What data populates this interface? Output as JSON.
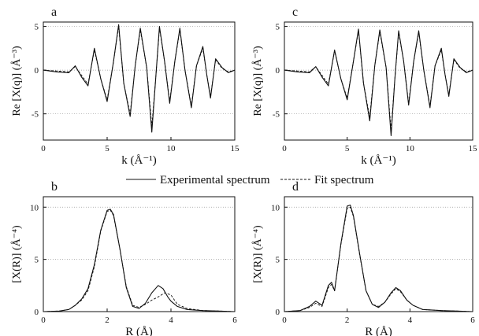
{
  "legend": {
    "experimental_label": "Experimental spectrum",
    "fit_label": "Fit spectrum"
  },
  "chart_data": [
    {
      "type": "line",
      "panel_label": "a",
      "xlabel": "k (Å⁻¹)",
      "ylabel": "Re [X(q)] (Å⁻³)",
      "xlim": [
        0,
        15
      ],
      "ylim": [
        -8,
        5.5
      ],
      "xticks": [
        0,
        5,
        10,
        15
      ],
      "yticks": [
        -5,
        0,
        5
      ],
      "grid": "dotted",
      "series": [
        {
          "name": "Experimental spectrum",
          "style": "solid",
          "x": [
            0,
            1,
            2,
            2.5,
            3,
            3.5,
            4,
            4.5,
            5,
            5.5,
            5.9,
            6.3,
            6.8,
            7.2,
            7.6,
            8.1,
            8.5,
            8.8,
            9.1,
            9.5,
            9.9,
            10.3,
            10.7,
            11.1,
            11.6,
            12.0,
            12.5,
            12.8,
            13.1,
            13.5,
            14,
            14.5,
            15
          ],
          "y": [
            0,
            -0.2,
            -0.3,
            0.5,
            -0.8,
            -1.8,
            2.5,
            -1.0,
            -3.6,
            1.0,
            5.2,
            -1.5,
            -5.3,
            0.5,
            4.8,
            0.3,
            -7.1,
            -1.0,
            5.0,
            1.0,
            -3.8,
            1.0,
            4.8,
            0.0,
            -4.3,
            0.5,
            2.7,
            -0.5,
            -3.2,
            1.3,
            0.3,
            -0.3,
            0
          ]
        },
        {
          "name": "Fit spectrum",
          "style": "dashed",
          "x": [
            0,
            1,
            2,
            2.5,
            3,
            3.5,
            4,
            4.5,
            5,
            5.5,
            5.9,
            6.3,
            6.8,
            7.2,
            7.6,
            8.1,
            8.5,
            8.8,
            9.1,
            9.5,
            9.9,
            10.3,
            10.7,
            11.1,
            11.6,
            12.0,
            12.5,
            12.8,
            13.1,
            13.5,
            14,
            14.5,
            15
          ],
          "y": [
            0,
            -0.1,
            -0.2,
            0.4,
            -0.6,
            -1.6,
            2.3,
            -1.0,
            -3.4,
            1.0,
            5.0,
            -1.5,
            -5.0,
            0.5,
            4.6,
            0.3,
            -6.4,
            -1.0,
            4.8,
            1.0,
            -3.6,
            1.0,
            4.6,
            0.0,
            -4.1,
            0.5,
            2.5,
            -0.5,
            -3.0,
            1.2,
            0.2,
            -0.2,
            0
          ]
        }
      ]
    },
    {
      "type": "line",
      "panel_label": "c",
      "xlabel": "k (Å⁻¹)",
      "ylabel": "Re [X(q)] (Å⁻³)",
      "xlim": [
        0,
        15
      ],
      "ylim": [
        -8,
        5.5
      ],
      "xticks": [
        0,
        5,
        10,
        15
      ],
      "yticks": [
        -5,
        0,
        5
      ],
      "grid": "dotted",
      "series": [
        {
          "name": "Experimental spectrum",
          "style": "solid",
          "x": [
            0,
            1,
            2,
            2.5,
            3,
            3.5,
            4,
            4.5,
            5,
            5.5,
            5.9,
            6.3,
            6.8,
            7.2,
            7.6,
            8.1,
            8.5,
            8.8,
            9.1,
            9.5,
            9.9,
            10.3,
            10.7,
            11.1,
            11.6,
            12.0,
            12.5,
            12.8,
            13.1,
            13.5,
            14,
            14.5,
            15
          ],
          "y": [
            0,
            -0.2,
            -0.3,
            0.4,
            -0.8,
            -1.8,
            2.3,
            -1.0,
            -3.4,
            1.0,
            4.7,
            -1.5,
            -5.8,
            0.5,
            4.6,
            0.3,
            -7.5,
            -1.0,
            4.5,
            1.0,
            -4.0,
            1.0,
            4.5,
            0.0,
            -4.3,
            0.5,
            2.5,
            -0.5,
            -3.0,
            1.3,
            0.3,
            -0.3,
            0
          ]
        },
        {
          "name": "Fit spectrum",
          "style": "dashed",
          "x": [
            0,
            1,
            2,
            2.5,
            3,
            3.5,
            4,
            4.5,
            5,
            5.5,
            5.9,
            6.3,
            6.8,
            7.2,
            7.6,
            8.1,
            8.5,
            8.8,
            9.1,
            9.5,
            9.9,
            10.3,
            10.7,
            11.1,
            11.6,
            12.0,
            12.5,
            12.8,
            13.1,
            13.5,
            14,
            14.5,
            15
          ],
          "y": [
            0,
            -0.1,
            -0.2,
            0.4,
            -0.6,
            -1.6,
            2.2,
            -1.0,
            -3.2,
            1.0,
            4.5,
            -1.5,
            -5.4,
            0.5,
            4.4,
            0.3,
            -6.9,
            -1.0,
            4.3,
            1.0,
            -3.8,
            1.0,
            4.3,
            0.0,
            -4.1,
            0.5,
            2.3,
            -0.5,
            -2.8,
            1.2,
            0.2,
            -0.2,
            0
          ]
        }
      ]
    },
    {
      "type": "line",
      "panel_label": "b",
      "xlabel": "R (Å)",
      "ylabel": "[X(R)] (Å⁻⁴)",
      "xlim": [
        0,
        6
      ],
      "ylim": [
        0,
        11
      ],
      "xticks": [
        0,
        2,
        4,
        6
      ],
      "yticks": [
        0,
        5,
        10
      ],
      "grid": "dotted",
      "series": [
        {
          "name": "Experimental spectrum",
          "style": "solid",
          "x": [
            0,
            0.5,
            0.8,
            1.0,
            1.2,
            1.4,
            1.6,
            1.8,
            2.0,
            2.1,
            2.2,
            2.4,
            2.6,
            2.8,
            3.0,
            3.2,
            3.4,
            3.6,
            3.75,
            3.9,
            4.0,
            4.2,
            4.5,
            5.0,
            5.5,
            6.0
          ],
          "y": [
            0,
            0.05,
            0.2,
            0.6,
            1.2,
            2.2,
            4.5,
            7.8,
            9.7,
            9.8,
            9.3,
            6.0,
            2.3,
            0.5,
            0.3,
            0.8,
            1.8,
            2.5,
            2.2,
            1.4,
            1.0,
            0.5,
            0.2,
            0.1,
            0.05,
            0
          ]
        },
        {
          "name": "Fit spectrum",
          "style": "dashed",
          "x": [
            0,
            0.5,
            0.8,
            1.0,
            1.2,
            1.4,
            1.6,
            1.8,
            2.0,
            2.1,
            2.2,
            2.4,
            2.6,
            2.8,
            3.0,
            3.2,
            3.4,
            3.6,
            3.8,
            4.0,
            4.2,
            4.5,
            5.0,
            5.5,
            6.0
          ],
          "y": [
            0,
            0.05,
            0.2,
            0.6,
            1.1,
            2.0,
            4.3,
            7.7,
            9.6,
            9.7,
            9.2,
            6.0,
            2.4,
            0.6,
            0.4,
            0.7,
            1.1,
            1.4,
            1.8,
            1.6,
            0.7,
            0.3,
            0.1,
            0.05,
            0
          ]
        }
      ]
    },
    {
      "type": "line",
      "panel_label": "d",
      "xlabel": "R (Å)",
      "ylabel": "[X(R)] (Å⁻⁴)",
      "xlim": [
        0,
        6
      ],
      "ylim": [
        0,
        11
      ],
      "xticks": [
        0,
        2,
        4,
        6
      ],
      "yticks": [
        0,
        5,
        10
      ],
      "grid": "dotted",
      "series": [
        {
          "name": "Experimental spectrum",
          "style": "solid",
          "x": [
            0,
            0.5,
            0.8,
            1.0,
            1.2,
            1.4,
            1.5,
            1.6,
            1.8,
            2.0,
            2.1,
            2.2,
            2.4,
            2.6,
            2.8,
            3.0,
            3.2,
            3.4,
            3.55,
            3.7,
            3.9,
            4.1,
            4.4,
            5.0,
            5.5,
            6.0
          ],
          "y": [
            0,
            0.1,
            0.5,
            1.0,
            0.6,
            2.5,
            2.8,
            2.0,
            6.5,
            10.1,
            10.2,
            9.2,
            5.5,
            2.0,
            0.7,
            0.4,
            0.9,
            1.8,
            2.3,
            2.0,
            1.1,
            0.6,
            0.2,
            0.1,
            0.05,
            0
          ]
        },
        {
          "name": "Fit spectrum",
          "style": "dashed",
          "x": [
            0,
            0.5,
            0.8,
            1.0,
            1.2,
            1.4,
            1.5,
            1.6,
            1.8,
            2.0,
            2.1,
            2.2,
            2.4,
            2.6,
            2.8,
            3.0,
            3.2,
            3.4,
            3.55,
            3.7,
            3.9,
            4.1,
            4.4,
            5.0,
            5.5,
            6.0
          ],
          "y": [
            0,
            0.1,
            0.4,
            0.8,
            0.5,
            2.3,
            2.6,
            2.0,
            6.4,
            9.9,
            10.0,
            9.1,
            5.4,
            2.0,
            0.7,
            0.5,
            0.9,
            1.7,
            2.2,
            1.9,
            1.1,
            0.6,
            0.2,
            0.1,
            0.05,
            0
          ]
        }
      ]
    }
  ]
}
